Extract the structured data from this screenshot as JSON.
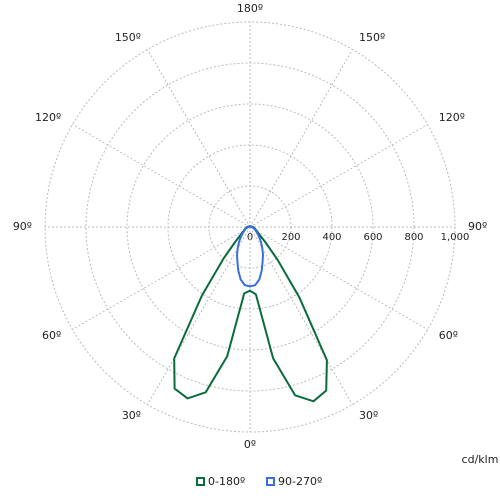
{
  "chart_data": {
    "type": "polar",
    "x": [
      -180,
      -150,
      -120,
      -90,
      -80,
      -70,
      -60,
      -50,
      -45,
      -40,
      -35,
      -30,
      -25,
      -20,
      -15,
      -10,
      -5,
      0,
      5,
      10,
      15,
      20,
      25,
      30,
      35,
      40,
      45,
      50,
      60,
      70,
      80,
      90,
      120,
      150,
      180
    ],
    "series": [
      {
        "name": "0-180º",
        "color": "#0a6b3c",
        "values": [
          3,
          4,
          6,
          14,
          18,
          25,
          35,
          60,
          100,
          200,
          410,
          740,
          870,
          890,
          835,
          640,
          325,
          310,
          330,
          650,
          850,
          905,
          880,
          750,
          420,
          210,
          110,
          65,
          38,
          26,
          20,
          15,
          6,
          4,
          3
        ]
      },
      {
        "name": "90-270º",
        "color": "#3a6ee0",
        "values": [
          3,
          4,
          5,
          8,
          12,
          20,
          30,
          45,
          58,
          75,
          95,
          120,
          150,
          180,
          220,
          260,
          285,
          290,
          285,
          260,
          220,
          180,
          150,
          120,
          95,
          75,
          58,
          45,
          30,
          20,
          12,
          8,
          5,
          4,
          3
        ]
      }
    ],
    "rlim": [
      0,
      1000
    ],
    "rticks": [
      0,
      200,
      400,
      600,
      800,
      {
        "value": 1000,
        "label": "1,000"
      }
    ],
    "angle_ticks": [
      {
        "value": -150,
        "label": "150º"
      },
      {
        "value": -120,
        "label": "120º"
      },
      {
        "value": -90,
        "label": "90º"
      },
      {
        "value": -60,
        "label": "60º"
      },
      {
        "value": -30,
        "label": "30º"
      },
      {
        "value": 0,
        "label": "0º"
      },
      {
        "value": 30,
        "label": "30º"
      },
      {
        "value": 60,
        "label": "60º"
      },
      {
        "value": 90,
        "label": "90º"
      },
      {
        "value": 120,
        "label": "120º"
      },
      {
        "value": 150,
        "label": "150º"
      },
      {
        "value": 180,
        "label": "180º"
      }
    ],
    "unit_label": "cd/klm",
    "grid": true
  }
}
